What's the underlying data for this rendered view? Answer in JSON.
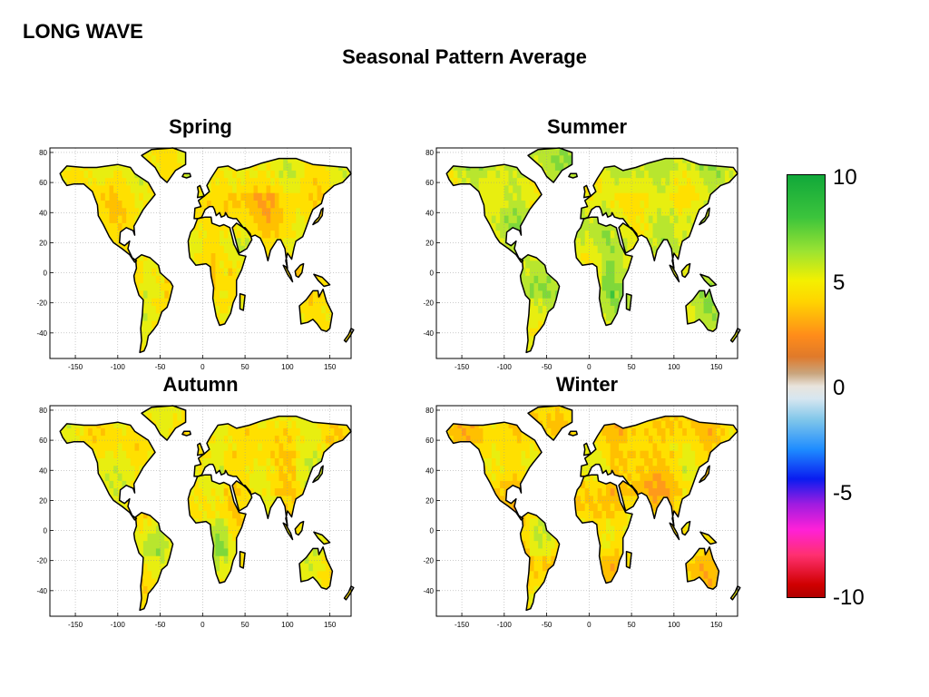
{
  "slide": {
    "label": "LONG WAVE",
    "title": "Seasonal Pattern Average"
  },
  "panels": [
    {
      "id": "spring",
      "title": "Spring"
    },
    {
      "id": "summer",
      "title": "Summer"
    },
    {
      "id": "autumn",
      "title": "Autumn"
    },
    {
      "id": "winter",
      "title": "Winter"
    }
  ],
  "map_axes": {
    "x_ticks": [
      -150,
      -100,
      -50,
      0,
      50,
      100,
      150
    ],
    "y_ticks": [
      80,
      60,
      40,
      20,
      0,
      -20,
      -40
    ],
    "xlim": [
      -180,
      175
    ],
    "ylim": [
      -57,
      83
    ],
    "grid": "dotted"
  },
  "colorbar": {
    "ticks": [
      "10",
      "5",
      "0",
      "-5",
      "-10"
    ],
    "range": [
      -10,
      10
    ],
    "colors": [
      "#11a83a",
      "#9be332",
      "#f4f000",
      "#ff8c1a",
      "#e9e4dc",
      "#7fc6ea",
      "#0a1cf0",
      "#ff20d8",
      "#d00000"
    ]
  }
}
